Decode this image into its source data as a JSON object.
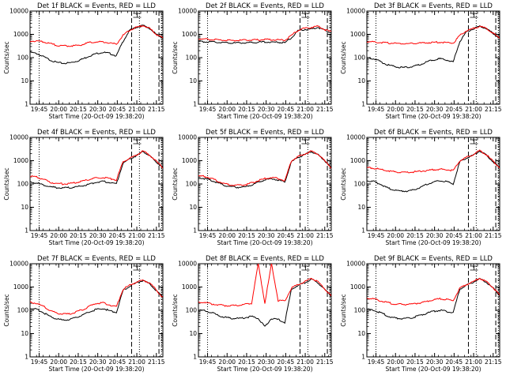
{
  "figure": {
    "background": "#ffffff",
    "colors": {
      "events": "#000000",
      "lld": "#ff0000"
    }
  },
  "chart_data": [
    {
      "type": "line",
      "title": "Det 1f BLACK = Events, RED = LLD",
      "xlabel": "Start Time (20-Oct-09 19:38:20)",
      "ylabel": "Counts/sec",
      "yscale": "log",
      "ylim": [
        1,
        10000
      ],
      "xlim": [
        "19:38",
        "21:20"
      ],
      "x_tick_labels": [
        "19:45",
        "20:00",
        "20:15",
        "20:30",
        "20:45",
        "21:00",
        "21:15"
      ],
      "y_tick_labels": [
        "1",
        "10",
        "100",
        "1000",
        "10000"
      ],
      "vertical_lines": {
        "dotted": [
          "19:45",
          "21:02",
          "21:19"
        ],
        "dashed": [
          "20:56",
          "21:17"
        ]
      },
      "series": [
        {
          "key": "events",
          "values": [
            170,
            150,
            110,
            80,
            62,
            57,
            60,
            70,
            90,
            120,
            150,
            170,
            150,
            120,
            500,
            1500,
            2000,
            2400,
            1800,
            1000,
            700
          ]
        },
        {
          "key": "lld",
          "values": [
            520,
            520,
            480,
            400,
            340,
            320,
            320,
            330,
            370,
            450,
            480,
            470,
            420,
            380,
            900,
            1500,
            2000,
            2400,
            1800,
            1000,
            700
          ]
        }
      ]
    },
    {
      "type": "line",
      "title": "Det 2f BLACK = Events, RED = LLD",
      "xlabel": "Start Time (20-Oct-09 19:38:20)",
      "ylabel": "Counts/sec",
      "yscale": "log",
      "ylim": [
        1,
        10000
      ],
      "xlim": [
        "19:38",
        "21:20"
      ],
      "x_tick_labels": [
        "19:45",
        "20:00",
        "20:15",
        "20:30",
        "20:45",
        "21:00",
        "21:15"
      ],
      "y_tick_labels": [
        "1",
        "10",
        "100",
        "1000",
        "10000"
      ],
      "vertical_lines": {
        "dotted": [
          "19:45",
          "21:02",
          "21:19"
        ],
        "dashed": [
          "20:56",
          "21:17"
        ]
      },
      "series": [
        {
          "key": "events",
          "values": [
            500,
            480,
            470,
            460,
            440,
            430,
            430,
            440,
            450,
            460,
            470,
            470,
            460,
            440,
            700,
            1400,
            1600,
            1700,
            2000,
            1500,
            1200
          ]
        },
        {
          "key": "lld",
          "values": [
            650,
            620,
            600,
            580,
            560,
            550,
            550,
            560,
            570,
            580,
            590,
            600,
            580,
            560,
            900,
            1500,
            1800,
            2000,
            2200,
            1600,
            1300
          ]
        }
      ]
    },
    {
      "type": "line",
      "title": "Det 3f BLACK = Events, RED = LLD",
      "xlabel": "Start Time (20-Oct-09 19:38:20)",
      "ylabel": "Counts/sec",
      "yscale": "log",
      "ylim": [
        1,
        10000
      ],
      "xlim": [
        "19:38",
        "21:20"
      ],
      "x_tick_labels": [
        "19:45",
        "20:00",
        "20:15",
        "20:30",
        "20:45",
        "21:00",
        "21:15"
      ],
      "y_tick_labels": [
        "1",
        "10",
        "100",
        "1000",
        "10000"
      ],
      "vertical_lines": {
        "dotted": [
          "19:45",
          "21:02",
          "21:19"
        ],
        "dashed": [
          "20:56",
          "21:17"
        ]
      },
      "series": [
        {
          "key": "events",
          "values": [
            100,
            90,
            70,
            50,
            42,
            38,
            38,
            42,
            50,
            65,
            80,
            90,
            80,
            65,
            500,
            1300,
            1700,
            2200,
            1800,
            1100,
            700
          ]
        },
        {
          "key": "lld",
          "values": [
            480,
            470,
            450,
            430,
            410,
            400,
            400,
            410,
            420,
            440,
            450,
            460,
            440,
            420,
            900,
            1400,
            1800,
            2200,
            1800,
            1100,
            700
          ]
        }
      ]
    },
    {
      "type": "line",
      "title": "Det 4f BLACK = Events, RED = LLD",
      "xlabel": "Start Time (20-Oct-09 19:38:20)",
      "ylabel": "Counts/sec",
      "yscale": "log",
      "ylim": [
        1,
        10000
      ],
      "xlim": [
        "19:38",
        "21:20"
      ],
      "x_tick_labels": [
        "19:45",
        "20:00",
        "20:15",
        "20:30",
        "20:45",
        "21:00",
        "21:15"
      ],
      "y_tick_labels": [
        "1",
        "10",
        "100",
        "1000",
        "10000"
      ],
      "vertical_lines": {
        "dotted": [
          "19:45",
          "21:02",
          "21:19"
        ],
        "dashed": [
          "20:56",
          "21:17"
        ]
      },
      "series": [
        {
          "key": "events",
          "values": [
            120,
            110,
            90,
            75,
            70,
            68,
            70,
            75,
            85,
            100,
            120,
            130,
            115,
            100,
            800,
            1200,
            1600,
            2500,
            1600,
            900,
            500
          ]
        },
        {
          "key": "lld",
          "values": [
            220,
            200,
            160,
            120,
            105,
            100,
            105,
            115,
            135,
            160,
            180,
            190,
            170,
            150,
            900,
            1300,
            1700,
            2600,
            1700,
            950,
            500
          ]
        }
      ]
    },
    {
      "type": "line",
      "title": "Det 5f BLACK = Events, RED = LLD",
      "xlabel": "Start Time (20-Oct-09 19:38:20)",
      "ylabel": "Counts/sec",
      "yscale": "log",
      "ylim": [
        1,
        10000
      ],
      "xlim": [
        "19:38",
        "21:20"
      ],
      "x_tick_labels": [
        "19:45",
        "20:00",
        "20:15",
        "20:30",
        "20:45",
        "21:00",
        "21:15"
      ],
      "y_tick_labels": [
        "1",
        "10",
        "100",
        "1000",
        "10000"
      ],
      "vertical_lines": {
        "dotted": [
          "19:45",
          "21:02",
          "21:19"
        ],
        "dashed": [
          "20:56",
          "21:17"
        ]
      },
      "series": [
        {
          "key": "events",
          "values": [
            180,
            170,
            140,
            110,
            85,
            75,
            72,
            75,
            90,
            120,
            150,
            170,
            150,
            120,
            900,
            1400,
            1800,
            2500,
            1800,
            1000,
            500
          ]
        },
        {
          "key": "lld",
          "values": [
            220,
            210,
            170,
            130,
            100,
            90,
            88,
            92,
            110,
            140,
            170,
            190,
            170,
            140,
            1000,
            1500,
            1900,
            2600,
            1900,
            1000,
            500
          ]
        }
      ]
    },
    {
      "type": "line",
      "title": "Det 6f BLACK = Events, RED = LLD",
      "xlabel": "Start Time (20-Oct-09 19:38:20)",
      "ylabel": "Counts/sec",
      "yscale": "log",
      "ylim": [
        1,
        10000
      ],
      "xlim": [
        "19:38",
        "21:20"
      ],
      "x_tick_labels": [
        "19:45",
        "20:00",
        "20:15",
        "20:30",
        "20:45",
        "21:00",
        "21:15"
      ],
      "y_tick_labels": [
        "1",
        "10",
        "100",
        "1000",
        "10000"
      ],
      "vertical_lines": {
        "dotted": [
          "19:45",
          "21:02",
          "21:19"
        ],
        "dashed": [
          "20:56",
          "21:17"
        ]
      },
      "series": [
        {
          "key": "events",
          "values": [
            140,
            130,
            100,
            70,
            55,
            50,
            50,
            55,
            70,
            95,
            120,
            140,
            125,
            100,
            900,
            1300,
            1700,
            2600,
            1700,
            900,
            500
          ]
        },
        {
          "key": "lld",
          "values": [
            500,
            480,
            430,
            380,
            340,
            320,
            320,
            330,
            350,
            380,
            410,
            430,
            410,
            380,
            1000,
            1400,
            1800,
            2700,
            1800,
            950,
            500
          ]
        }
      ]
    },
    {
      "type": "line",
      "title": "Det 7f BLACK = Events, RED = LLD",
      "xlabel": "Start Time (20-Oct-09 19:38:20)",
      "ylabel": "Counts/sec",
      "yscale": "log",
      "ylim": [
        1,
        10000
      ],
      "xlim": [
        "19:38",
        "21:20"
      ],
      "x_tick_labels": [
        "19:45",
        "20:00",
        "20:15",
        "20:30",
        "20:45",
        "21:00",
        "21:15"
      ],
      "y_tick_labels": [
        "1",
        "10",
        "100",
        "1000",
        "10000"
      ],
      "vertical_lines": {
        "dotted": [
          "19:45",
          "21:02",
          "21:19"
        ],
        "dashed": [
          "20:56",
          "21:17"
        ]
      },
      "series": [
        {
          "key": "events",
          "values": [
            120,
            110,
            80,
            55,
            42,
            38,
            40,
            50,
            65,
            85,
            110,
            120,
            95,
            80,
            700,
            1100,
            1500,
            1900,
            1400,
            700,
            350
          ]
        },
        {
          "key": "lld",
          "values": [
            220,
            200,
            150,
            100,
            75,
            68,
            70,
            85,
            110,
            150,
            200,
            210,
            170,
            140,
            800,
            1200,
            1600,
            2000,
            1500,
            750,
            350
          ]
        }
      ]
    },
    {
      "type": "line",
      "title": "Det 8f BLACK = Events, RED = LLD",
      "xlabel": "Start Time (20-Oct-09 19:38:20)",
      "ylabel": "Counts/sec",
      "yscale": "log",
      "ylim": [
        1,
        10000
      ],
      "xlim": [
        "19:38",
        "21:20"
      ],
      "x_tick_labels": [
        "19:45",
        "20:00",
        "20:15",
        "20:30",
        "20:45",
        "21:00",
        "21:15"
      ],
      "y_tick_labels": [
        "1",
        "10",
        "100",
        "1000",
        "10000"
      ],
      "vertical_lines": {
        "dotted": [
          "19:45",
          "21:02",
          "21:19"
        ],
        "dashed": [
          "20:56",
          "21:17"
        ]
      },
      "series": [
        {
          "key": "events",
          "values": [
            100,
            95,
            80,
            60,
            50,
            45,
            45,
            48,
            55,
            45,
            20,
            45,
            40,
            30,
            800,
            1200,
            1500,
            2200,
            1500,
            800,
            400
          ]
        },
        {
          "key": "lld",
          "values": [
            230,
            220,
            190,
            170,
            160,
            160,
            165,
            180,
            200,
            10000,
            200,
            10000,
            260,
            250,
            900,
            1300,
            1700,
            2400,
            1700,
            850,
            400
          ]
        }
      ]
    },
    {
      "type": "line",
      "title": "Det 9f BLACK = Events, RED = LLD",
      "xlabel": "Start Time (20-Oct-09 19:38:20)",
      "ylabel": "Counts/sec",
      "yscale": "log",
      "ylim": [
        1,
        10000
      ],
      "xlim": [
        "19:38",
        "21:20"
      ],
      "x_tick_labels": [
        "19:45",
        "20:00",
        "20:15",
        "20:30",
        "20:45",
        "21:00",
        "21:15"
      ],
      "y_tick_labels": [
        "1",
        "10",
        "100",
        "1000",
        "10000"
      ],
      "vertical_lines": {
        "dotted": [
          "19:45",
          "21:02",
          "21:19"
        ],
        "dashed": [
          "20:56",
          "21:17"
        ]
      },
      "series": [
        {
          "key": "events",
          "values": [
            110,
            100,
            80,
            60,
            48,
            44,
            45,
            50,
            60,
            75,
            90,
            100,
            90,
            80,
            800,
            1200,
            1600,
            2300,
            1600,
            900,
            450
          ]
        },
        {
          "key": "lld",
          "values": [
            330,
            310,
            260,
            220,
            190,
            180,
            180,
            190,
            210,
            240,
            280,
            310,
            290,
            260,
            900,
            1300,
            1700,
            2400,
            1700,
            950,
            450
          ]
        }
      ]
    }
  ]
}
